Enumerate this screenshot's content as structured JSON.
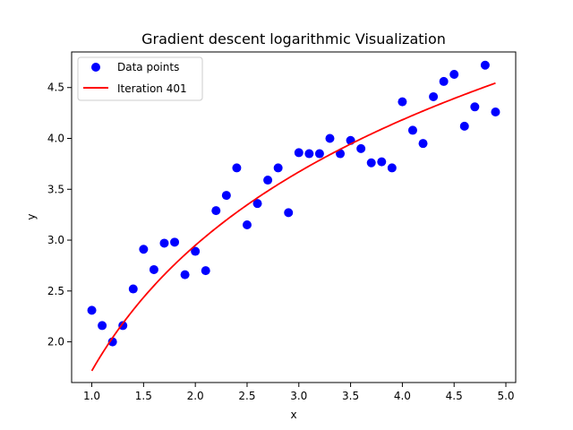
{
  "chart_data": {
    "type": "scatter",
    "title": "Gradient descent logarithmic Visualization",
    "xlabel": "x",
    "ylabel": "y",
    "xlim": [
      0.805,
      5.095
    ],
    "ylim": [
      1.6,
      4.85
    ],
    "xticks": [
      1.0,
      1.5,
      2.0,
      2.5,
      3.0,
      3.5,
      4.0,
      4.5,
      5.0
    ],
    "xtick_labels": [
      "1.0",
      "1.5",
      "2.0",
      "2.5",
      "3.0",
      "3.5",
      "4.0",
      "4.5",
      "5.0"
    ],
    "yticks": [
      2.0,
      2.5,
      3.0,
      3.5,
      4.0,
      4.5
    ],
    "ytick_labels": [
      "2.0",
      "2.5",
      "3.0",
      "3.5",
      "4.0",
      "4.5"
    ],
    "grid": false,
    "legend_position": "top-left",
    "series": [
      {
        "name": "Data points",
        "kind": "scatter",
        "color": "#0000ff",
        "points": [
          [
            1.0,
            2.31
          ],
          [
            1.1,
            2.16
          ],
          [
            1.2,
            2.0
          ],
          [
            1.3,
            2.16
          ],
          [
            1.4,
            2.52
          ],
          [
            1.5,
            2.91
          ],
          [
            1.6,
            2.71
          ],
          [
            1.7,
            2.97
          ],
          [
            1.8,
            2.98
          ],
          [
            1.9,
            2.66
          ],
          [
            2.0,
            2.89
          ],
          [
            2.1,
            2.7
          ],
          [
            2.2,
            3.29
          ],
          [
            2.3,
            3.44
          ],
          [
            2.4,
            3.71
          ],
          [
            2.5,
            3.15
          ],
          [
            2.6,
            3.36
          ],
          [
            2.7,
            3.59
          ],
          [
            2.8,
            3.71
          ],
          [
            2.9,
            3.27
          ],
          [
            3.0,
            3.86
          ],
          [
            3.1,
            3.85
          ],
          [
            3.2,
            3.85
          ],
          [
            3.3,
            4.0
          ],
          [
            3.4,
            3.85
          ],
          [
            3.5,
            3.98
          ],
          [
            3.6,
            3.9
          ],
          [
            3.7,
            3.76
          ],
          [
            3.8,
            3.77
          ],
          [
            3.9,
            3.71
          ],
          [
            4.0,
            4.36
          ],
          [
            4.1,
            4.08
          ],
          [
            4.2,
            3.95
          ],
          [
            4.3,
            4.41
          ],
          [
            4.4,
            4.56
          ],
          [
            4.5,
            4.63
          ],
          [
            4.6,
            4.12
          ],
          [
            4.7,
            4.31
          ],
          [
            4.8,
            4.72
          ],
          [
            4.9,
            4.26
          ]
        ]
      },
      {
        "name": "Iteration 401",
        "kind": "line",
        "color": "#ff0000",
        "model": {
          "form": "a*ln(x)+b",
          "a": 1.78,
          "b": 1.715
        },
        "x_range": [
          1.0,
          4.9
        ]
      }
    ]
  }
}
